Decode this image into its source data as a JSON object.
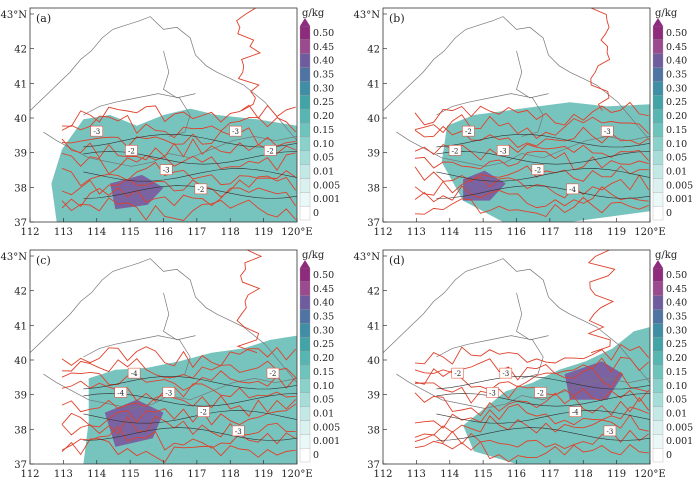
{
  "figure": {
    "x_ticks": [
      "112",
      "113",
      "114",
      "115",
      "116",
      "117",
      "118",
      "119",
      "120°E"
    ],
    "y_ticks": [
      "37",
      "38",
      "39",
      "40",
      "41",
      "42",
      "43°N"
    ],
    "unit": "g/kg",
    "colorbar_labels": [
      "0.50",
      "0.45",
      "0.40",
      "0.35",
      "0.30",
      "0.25",
      "0.20",
      "0.15",
      "0.10",
      "0.05",
      "0.01",
      "0.005",
      "0.001",
      "0"
    ],
    "colorbar_colors": [
      "#8e2b7d",
      "#9a4a8f",
      "#6f5c9e",
      "#4f73a3",
      "#3f8ea5",
      "#43a4a7",
      "#57b6b1",
      "#6ec3bd",
      "#8ad0cb",
      "#a7ddd9",
      "#c3e8e5",
      "#daf1ef",
      "#eaf8f7",
      "#ffffff"
    ],
    "contour_labels": [
      "-3",
      "-2",
      "-3",
      "-2",
      "-3",
      "-2",
      "-4",
      "-3",
      "-2",
      "-3",
      "-2",
      "-4"
    ]
  },
  "panels": [
    {
      "id": "a",
      "label": "(a)"
    },
    {
      "id": "b",
      "label": "(b)"
    },
    {
      "id": "c",
      "label": "(c)"
    },
    {
      "id": "d",
      "label": "(d)"
    }
  ]
}
